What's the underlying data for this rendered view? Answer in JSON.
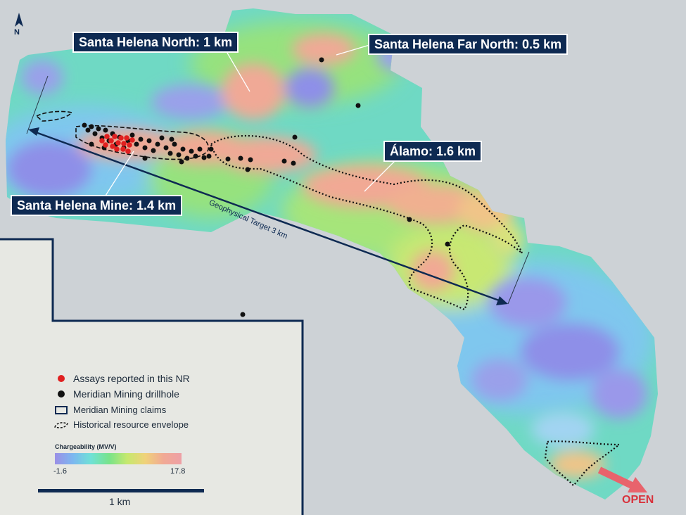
{
  "north": {
    "label": "N",
    "icon": "north-arrow-icon"
  },
  "callouts": {
    "sh_north": "Santa Helena North: 1 km",
    "sh_far_north": "Santa Helena Far North: 0.5 km",
    "alamo": "Álamo: 1.6 km",
    "sh_mine": "Santa Helena Mine: 1.4 km"
  },
  "target_label": "Geophysical Target 3 km",
  "legend": {
    "assays": "Assays reported in this NR",
    "drillhole": "Meridian Mining drillhole",
    "claims": "Meridian Mining claims",
    "envelope": "Historical resource envelope",
    "chargeability_title": "Chargeability (MV/V)",
    "min": "-1.6",
    "max": "17.8"
  },
  "scale": {
    "label": "1 km"
  },
  "open_label": "OPEN",
  "colors": {
    "navy": "#0e2a52",
    "assay_red": "#e02020",
    "drillhole_black": "#111111",
    "open_red": "#d8323c"
  }
}
